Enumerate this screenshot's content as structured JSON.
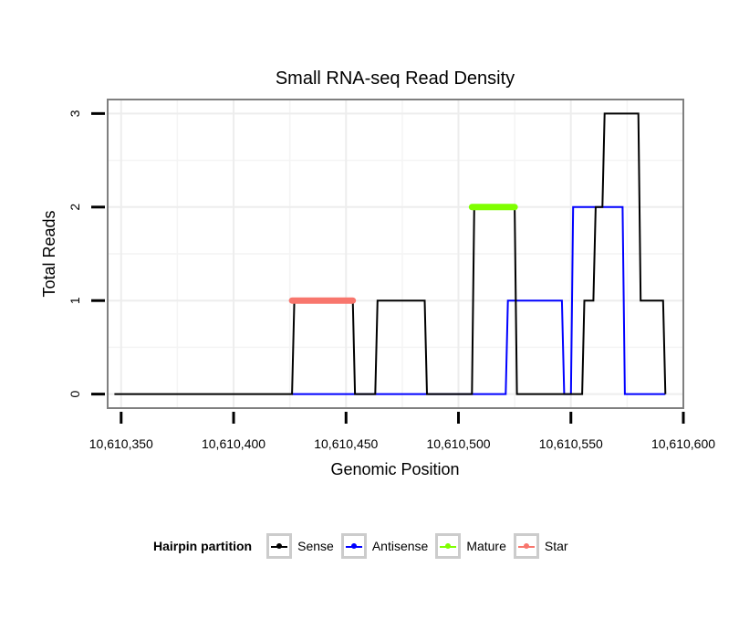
{
  "chart_data": {
    "type": "line",
    "title": "Small RNA-seq Read Density",
    "xlabel": "Genomic Position",
    "ylabel": "Total Reads",
    "xlim": [
      10610344,
      10610600
    ],
    "ylim": [
      -0.15,
      3.15
    ],
    "xticks": [
      10610350,
      10610400,
      10610450,
      10610500,
      10610550,
      10610600
    ],
    "xtick_labels": [
      "10,610,350",
      "10,610,400",
      "10,610,450",
      "10,610,500",
      "10,610,550",
      "10,610,600"
    ],
    "yticks": [
      0,
      1,
      2,
      3
    ],
    "ytick_labels": [
      "0",
      "1",
      "2",
      "3"
    ],
    "grid": true,
    "series": [
      {
        "name": "Sense",
        "color": "#000000",
        "x": [
          10610347,
          10610426,
          10610427,
          10610453,
          10610454,
          10610463,
          10610464,
          10610485,
          10610486,
          10610506,
          10610507,
          10610525,
          10610526,
          10610555,
          10610556,
          10610560,
          10610561,
          10610564,
          10610565,
          10610580,
          10610581,
          10610591,
          10610592
        ],
        "y": [
          0,
          0,
          1,
          1,
          0,
          0,
          1,
          1,
          0,
          0,
          2,
          2,
          0,
          0,
          1,
          1,
          2,
          2,
          3,
          3,
          1,
          1,
          0
        ]
      },
      {
        "name": "Antisense",
        "color": "#0000ff",
        "x": [
          10610426,
          10610521,
          10610522,
          10610546,
          10610547,
          10610550,
          10610551,
          10610573,
          10610574,
          10610592
        ],
        "y": [
          0,
          0,
          1,
          1,
          0,
          0,
          2,
          2,
          0,
          0
        ]
      }
    ],
    "annotations": [
      {
        "name": "Star",
        "color": "#f8766d",
        "x": [
          10610426,
          10610453
        ],
        "y": 1
      },
      {
        "name": "Mature",
        "color": "#7fff00",
        "x": [
          10610506,
          10610525
        ],
        "y": 2
      }
    ],
    "legend": {
      "title": "Hairpin partition",
      "position": "bottom",
      "items": [
        {
          "label": "Sense",
          "color": "#000000"
        },
        {
          "label": "Antisense",
          "color": "#0000ff"
        },
        {
          "label": "Mature",
          "color": "#7fff00"
        },
        {
          "label": "Star",
          "color": "#f8766d"
        }
      ]
    }
  }
}
